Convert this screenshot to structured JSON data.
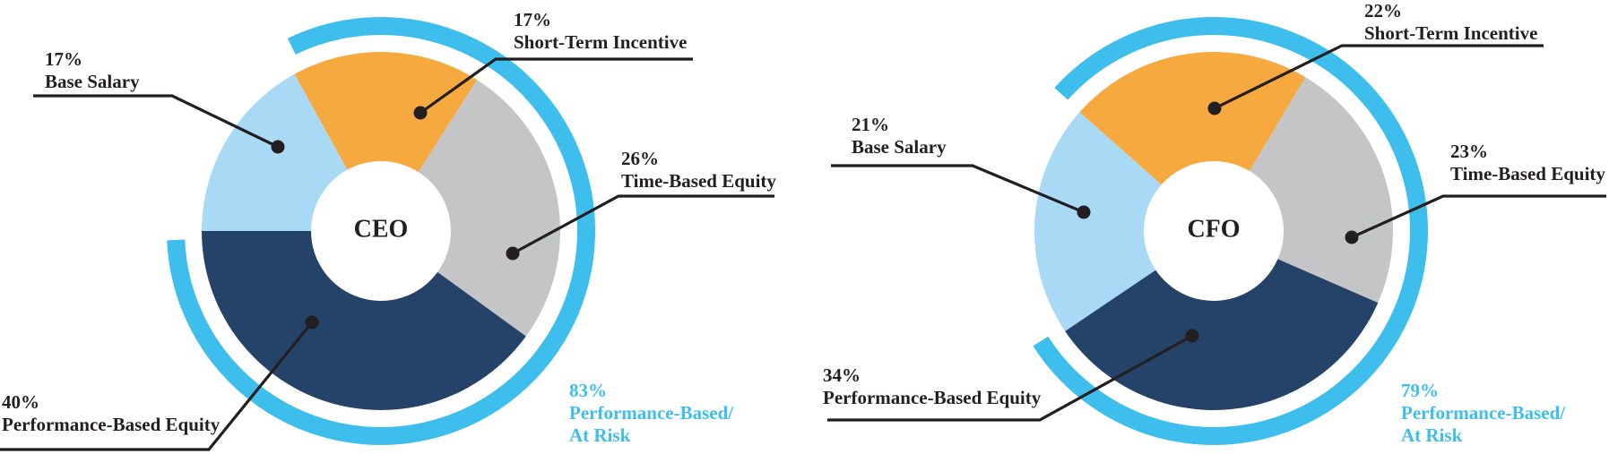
{
  "chart_data": [
    {
      "type": "donut",
      "center_label": "CEO",
      "value_suffix": "%",
      "segments": [
        {
          "label": "Base Salary",
          "value": 17,
          "color": "#A9DAF5"
        },
        {
          "label": "Short-Term Incentive",
          "value": 17,
          "color": "#F5A93E"
        },
        {
          "label": "Time-Based Equity",
          "value": 26,
          "color": "#C4C5C7"
        },
        {
          "label": "Performance-Based Equity",
          "value": 40,
          "color": "#254368"
        }
      ],
      "highlight_arc": {
        "value": 83,
        "label_lines": [
          "Performance-Based/",
          "At Risk"
        ],
        "color": "#3EBEEC"
      }
    },
    {
      "type": "donut",
      "center_label": "CFO",
      "value_suffix": "%",
      "segments": [
        {
          "label": "Base Salary",
          "value": 21,
          "color": "#A9DAF5"
        },
        {
          "label": "Short-Term Incentive",
          "value": 22,
          "color": "#F5A93E"
        },
        {
          "label": "Time-Based Equity",
          "value": 23,
          "color": "#C4C5C7"
        },
        {
          "label": "Performance-Based Equity",
          "value": 34,
          "color": "#254368"
        }
      ],
      "highlight_arc": {
        "value": 79,
        "label_lines": [
          "Performance-Based/",
          "At Risk"
        ],
        "color": "#3EBEEC"
      }
    }
  ],
  "colors": {
    "text": "#231F20",
    "leader_line": "#231F20",
    "highlight": "#3EBEEC",
    "background": "#FFFFFF"
  }
}
